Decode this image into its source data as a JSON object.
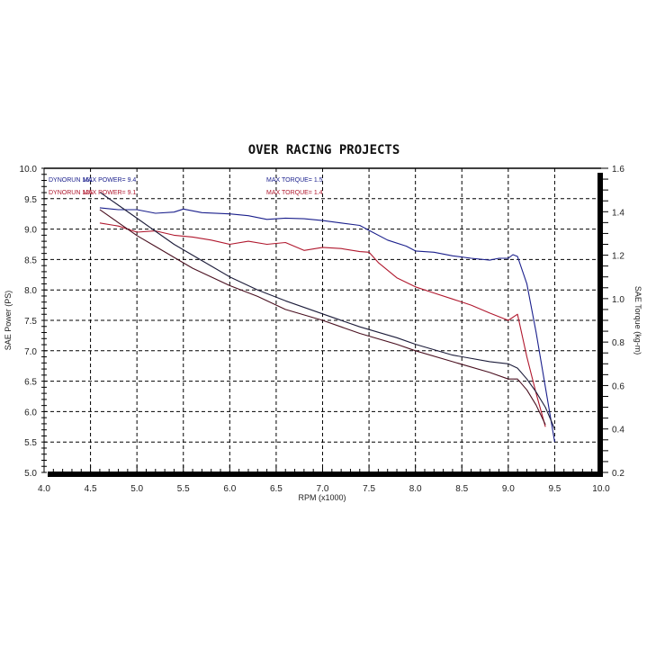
{
  "chart_data": {
    "type": "line",
    "title": "OVER RACING PROJECTS",
    "xlabel": "RPM (x1000)",
    "ylabel": "SAE Power (PS)",
    "y2label": "SAE Torque (kg-m)",
    "xlim": [
      4.0,
      10.0
    ],
    "ylim": [
      5.0,
      10.0
    ],
    "y2lim": [
      0.2,
      1.6
    ],
    "x_ticks": [
      "4.0",
      "4.5",
      "5.0",
      "5.5",
      "6.0",
      "6.5",
      "7.0",
      "7.5",
      "8.0",
      "8.5",
      "9.0",
      "9.5",
      "10.0"
    ],
    "y_ticks": [
      "10.0",
      "9.5",
      "9.0",
      "8.5",
      "8.0",
      "7.5",
      "7.0",
      "6.5",
      "6.0",
      "5.5",
      "5.0"
    ],
    "y2_ticks": [
      "1.6",
      "1.4",
      "1.2",
      "1.0",
      "0.8",
      "0.6",
      "0.4",
      "0.2"
    ],
    "grid": true,
    "legend_position": "top-left inside",
    "legend": [
      {
        "run": "DYNORUN 161",
        "max_power_label": "MAX POWER= 9.4",
        "max_torque_label": "MAX TORQUE= 1.5",
        "color": "#1a1f8c"
      },
      {
        "run": "DYNORUN 125",
        "max_power_label": "MAX POWER= 9.1",
        "max_torque_label": "MAX TORQUE= 1.4",
        "color": "#b0182e"
      }
    ],
    "series": [
      {
        "name": "DYNORUN 161 Power (PS)",
        "axis": "left",
        "color": "#1a1f8c",
        "x": [
          4.6,
          4.8,
          5.0,
          5.2,
          5.4,
          5.5,
          5.7,
          6.0,
          6.2,
          6.4,
          6.6,
          6.8,
          7.0,
          7.2,
          7.4,
          7.5,
          7.7,
          7.9,
          8.0,
          8.2,
          8.4,
          8.6,
          8.8,
          8.9,
          9.0,
          9.05,
          9.1,
          9.2,
          9.3,
          9.4,
          9.5
        ],
        "values": [
          9.35,
          9.32,
          9.32,
          9.26,
          9.28,
          9.33,
          9.27,
          9.25,
          9.22,
          9.16,
          9.18,
          9.17,
          9.14,
          9.1,
          9.06,
          8.98,
          8.82,
          8.72,
          8.64,
          8.62,
          8.56,
          8.52,
          8.49,
          8.52,
          8.52,
          8.58,
          8.55,
          8.1,
          7.3,
          6.4,
          5.5
        ]
      },
      {
        "name": "DYNORUN 125 Power (PS)",
        "axis": "left",
        "color": "#b0182e",
        "x": [
          4.6,
          4.8,
          5.0,
          5.2,
          5.4,
          5.6,
          5.8,
          6.0,
          6.2,
          6.4,
          6.6,
          6.8,
          7.0,
          7.2,
          7.4,
          7.5,
          7.6,
          7.8,
          8.0,
          8.2,
          8.4,
          8.6,
          8.8,
          9.0,
          9.1,
          9.2,
          9.3,
          9.4
        ],
        "values": [
          9.1,
          9.05,
          8.95,
          8.97,
          8.9,
          8.87,
          8.82,
          8.75,
          8.8,
          8.75,
          8.78,
          8.65,
          8.7,
          8.68,
          8.63,
          8.62,
          8.45,
          8.2,
          8.05,
          7.95,
          7.85,
          7.75,
          7.62,
          7.5,
          7.6,
          6.9,
          6.3,
          5.75
        ]
      },
      {
        "name": "DYNORUN 161 Torque (kg-m)",
        "axis": "right",
        "color": "#1c1c3a",
        "x": [
          4.6,
          4.8,
          5.0,
          5.2,
          5.4,
          5.6,
          5.8,
          6.0,
          6.3,
          6.6,
          7.0,
          7.4,
          7.8,
          8.0,
          8.4,
          8.8,
          9.0,
          9.1,
          9.2,
          9.3,
          9.4,
          9.5
        ],
        "values": [
          1.49,
          1.43,
          1.37,
          1.31,
          1.25,
          1.2,
          1.15,
          1.1,
          1.04,
          0.99,
          0.93,
          0.87,
          0.82,
          0.79,
          0.74,
          0.71,
          0.7,
          0.68,
          0.63,
          0.57,
          0.5,
          0.4
        ]
      },
      {
        "name": "DYNORUN 125 Torque (kg-m)",
        "axis": "right",
        "color": "#4a1020",
        "x": [
          4.6,
          4.8,
          5.0,
          5.2,
          5.4,
          5.6,
          5.8,
          6.0,
          6.3,
          6.6,
          7.0,
          7.4,
          7.8,
          8.0,
          8.4,
          8.8,
          9.0,
          9.1,
          9.2,
          9.3,
          9.4
        ],
        "values": [
          1.41,
          1.35,
          1.29,
          1.24,
          1.19,
          1.14,
          1.1,
          1.06,
          1.01,
          0.95,
          0.9,
          0.84,
          0.79,
          0.76,
          0.71,
          0.66,
          0.63,
          0.63,
          0.58,
          0.51,
          0.42
        ]
      }
    ]
  }
}
